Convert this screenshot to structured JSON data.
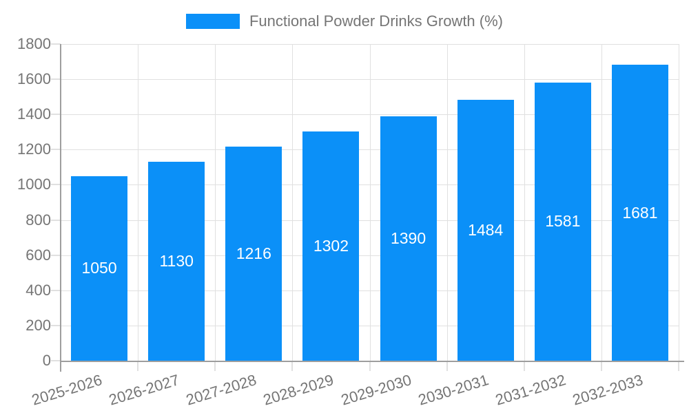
{
  "chart_data": {
    "type": "bar",
    "title": "",
    "legend": "Functional Powder Drinks Growth (%)",
    "legend_position": "top-center",
    "categories": [
      "2025-2026",
      "2026-2027",
      "2027-2028",
      "2028-2029",
      "2029-2030",
      "2030-2031",
      "2031-2032",
      "2032-2033"
    ],
    "values": [
      1050,
      1130,
      1216,
      1302,
      1390,
      1484,
      1581,
      1681
    ],
    "xlabel": "",
    "ylabel": "",
    "ylim": [
      0,
      1800
    ],
    "ytick_step": 200,
    "ytick_labels": [
      "0",
      "200",
      "400",
      "600",
      "800",
      "1000",
      "1200",
      "1400",
      "1600",
      "1800"
    ],
    "grid": true,
    "value_label_position": "center-of-bar",
    "xlabel_rotation_deg": -17,
    "colors": {
      "bar": "#0b90f8",
      "grid": "#e0e0e0",
      "axis": "#9e9e9e",
      "tick": "#e0e0e0",
      "tick_label": "#757575",
      "legend_text": "#757575",
      "value_label": "#ffffff",
      "background": "#ffffff"
    }
  }
}
